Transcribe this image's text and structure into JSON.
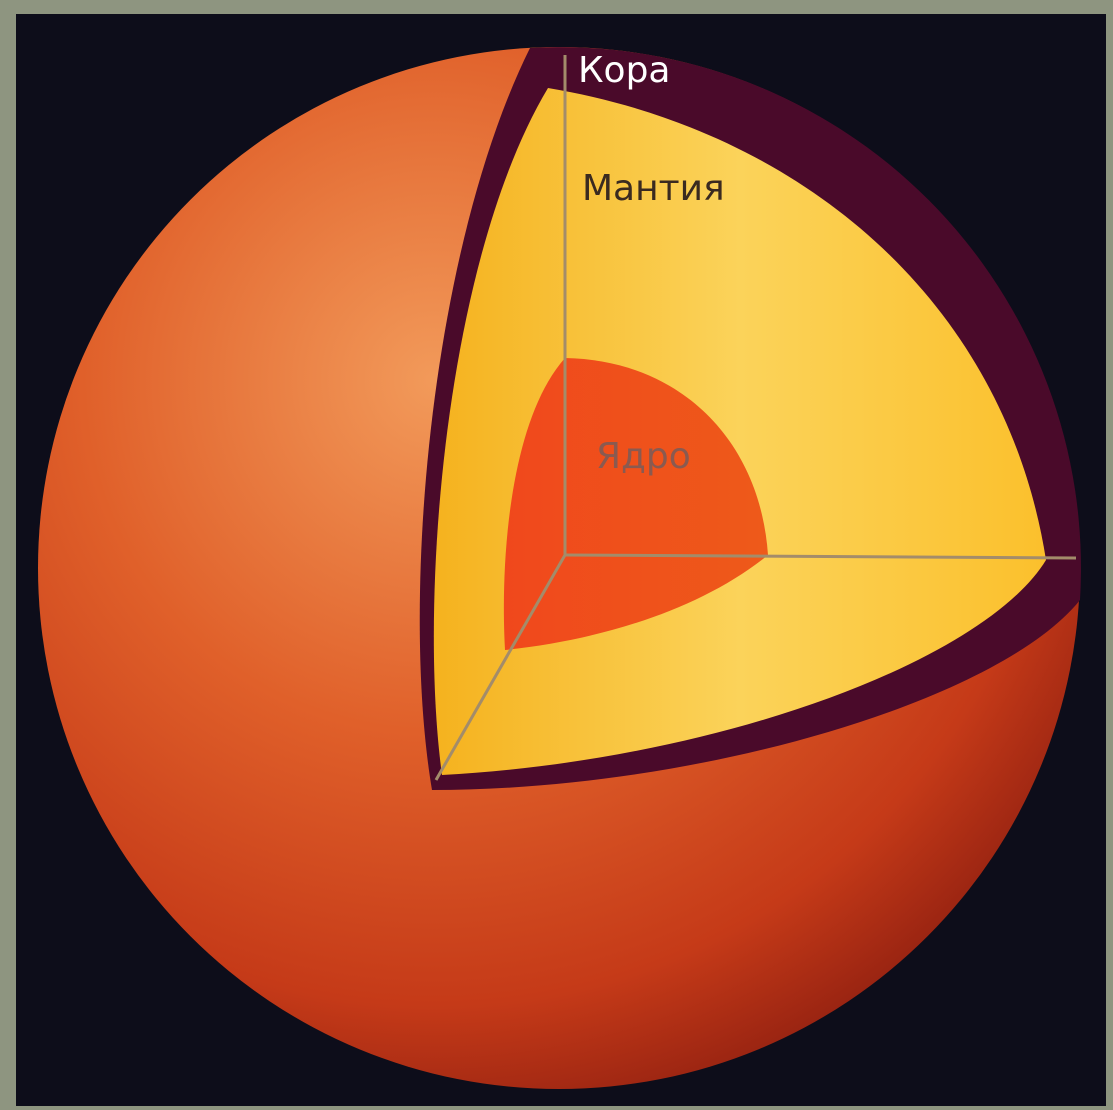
{
  "labels": {
    "crust": "Кора",
    "mantle": "Мантия",
    "core": "Ядро"
  }
}
